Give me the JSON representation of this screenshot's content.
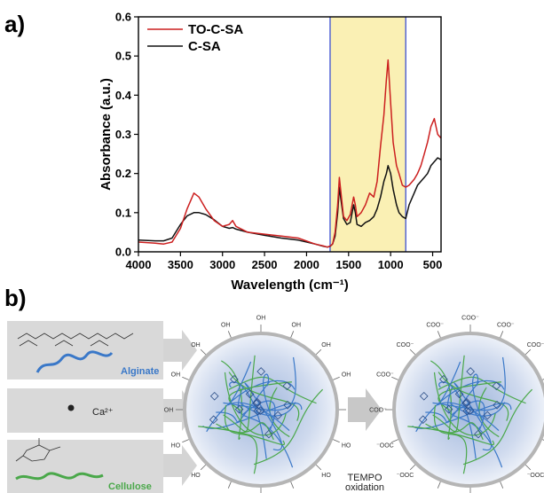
{
  "panel_a": {
    "label": "a)"
  },
  "panel_b": {
    "label": "b)"
  },
  "chart_data": {
    "type": "line",
    "xlabel": "Wavelength (cm⁻¹)",
    "ylabel": "Absorbance (a.u.)",
    "xlim": [
      4000,
      400
    ],
    "ylim": [
      0,
      0.6
    ],
    "x_ticks": [
      4000,
      3500,
      3000,
      2500,
      2000,
      1500,
      1000,
      500
    ],
    "y_ticks": [
      0.0,
      0.1,
      0.2,
      0.3,
      0.4,
      0.5,
      0.6
    ],
    "x_tick_labels": [
      "4000",
      "3500",
      "3000",
      "2500",
      "2000",
      "1500",
      "1000",
      "500"
    ],
    "y_tick_labels": [
      "0.0",
      "0.1",
      "0.2",
      "0.3",
      "0.4",
      "0.5",
      "0.6"
    ],
    "legend_position": "top-left",
    "highlight_region": {
      "x_from": 1720,
      "x_to": 820,
      "color": "#faf0b4",
      "edge_color": "#3b4fd0"
    },
    "series": [
      {
        "name": "TO-C-SA",
        "color": "#cc1f1f",
        "x": [
          4000,
          3800,
          3700,
          3600,
          3500,
          3420,
          3340,
          3280,
          3200,
          3100,
          3000,
          2920,
          2880,
          2840,
          2700,
          2500,
          2300,
          2100,
          1900,
          1800,
          1750,
          1720,
          1690,
          1660,
          1630,
          1610,
          1595,
          1560,
          1520,
          1480,
          1440,
          1420,
          1400,
          1350,
          1300,
          1250,
          1200,
          1160,
          1120,
          1080,
          1050,
          1030,
          1000,
          970,
          930,
          900,
          860,
          820,
          780,
          720,
          680,
          640,
          600,
          560,
          520,
          480,
          440,
          400
        ],
        "y": [
          0.025,
          0.022,
          0.02,
          0.025,
          0.06,
          0.11,
          0.15,
          0.14,
          0.11,
          0.08,
          0.065,
          0.07,
          0.08,
          0.065,
          0.05,
          0.045,
          0.04,
          0.035,
          0.02,
          0.015,
          0.012,
          0.015,
          0.02,
          0.05,
          0.12,
          0.19,
          0.16,
          0.09,
          0.08,
          0.095,
          0.14,
          0.12,
          0.09,
          0.1,
          0.12,
          0.15,
          0.14,
          0.18,
          0.27,
          0.35,
          0.44,
          0.49,
          0.38,
          0.28,
          0.22,
          0.2,
          0.17,
          0.165,
          0.17,
          0.185,
          0.2,
          0.22,
          0.25,
          0.28,
          0.32,
          0.34,
          0.3,
          0.29
        ]
      },
      {
        "name": "C-SA",
        "color": "#111111",
        "x": [
          4000,
          3800,
          3700,
          3600,
          3500,
          3420,
          3340,
          3280,
          3200,
          3100,
          3000,
          2920,
          2880,
          2840,
          2700,
          2500,
          2300,
          2100,
          1900,
          1800,
          1750,
          1720,
          1690,
          1660,
          1630,
          1610,
          1595,
          1560,
          1520,
          1480,
          1440,
          1420,
          1400,
          1350,
          1300,
          1250,
          1200,
          1160,
          1120,
          1080,
          1050,
          1030,
          1000,
          970,
          930,
          900,
          860,
          820,
          780,
          720,
          680,
          640,
          600,
          560,
          520,
          480,
          440,
          400
        ],
        "y": [
          0.03,
          0.028,
          0.028,
          0.035,
          0.07,
          0.092,
          0.1,
          0.1,
          0.095,
          0.082,
          0.065,
          0.06,
          0.062,
          0.058,
          0.05,
          0.042,
          0.035,
          0.03,
          0.02,
          0.014,
          0.012,
          0.014,
          0.02,
          0.04,
          0.1,
          0.165,
          0.14,
          0.085,
          0.07,
          0.075,
          0.12,
          0.1,
          0.07,
          0.065,
          0.075,
          0.08,
          0.09,
          0.11,
          0.14,
          0.18,
          0.2,
          0.22,
          0.2,
          0.16,
          0.12,
          0.1,
          0.09,
          0.085,
          0.12,
          0.15,
          0.17,
          0.18,
          0.19,
          0.2,
          0.22,
          0.23,
          0.24,
          0.235
        ]
      }
    ]
  },
  "scheme": {
    "components": [
      {
        "label": "Alginate",
        "color": "#3a78c8"
      },
      {
        "label": "Ca²⁺",
        "color": "#222222"
      },
      {
        "label": "Cellulose",
        "color": "#4aa84a"
      }
    ],
    "bead_left_group": "OH",
    "bead_left_group_alt": "HO",
    "bead_right_group": "COO⁻",
    "bead_right_group_alt": "⁻OOC",
    "process_line1": "TEMPO",
    "process_line2": "oxidation"
  }
}
